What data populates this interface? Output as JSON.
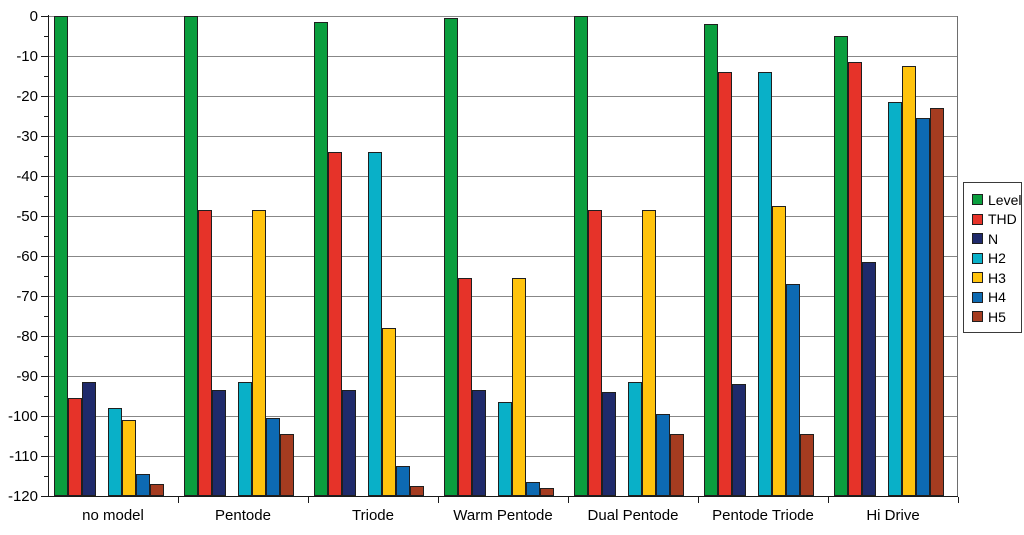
{
  "chart_data": {
    "type": "bar",
    "title": "",
    "xlabel": "",
    "ylabel": "",
    "categories": [
      "no model",
      "Pentode",
      "Triode",
      "Warm Pentode",
      "Dual Pentode",
      "Pentode Triode",
      "Hi Drive"
    ],
    "series": [
      {
        "name": "Level",
        "color": "#0a9e3e",
        "values": [
          0,
          0,
          -1.5,
          -0.5,
          0,
          -2,
          -5
        ]
      },
      {
        "name": "THD",
        "color": "#e63329",
        "values": [
          -95.5,
          -48.5,
          -34,
          -65.5,
          -48.5,
          -14,
          -11.5
        ]
      },
      {
        "name": "N",
        "color": "#1f2a6b",
        "values": [
          -91.5,
          -93.5,
          -93.5,
          -93.5,
          -94,
          -92,
          -61.5
        ]
      },
      {
        "name": "H2",
        "color": "#09b0c8",
        "values": [
          -98,
          -91.5,
          -34,
          -96.5,
          -91.5,
          -14,
          -21.5
        ]
      },
      {
        "name": "H3",
        "color": "#ffc30d",
        "values": [
          -101,
          -48.5,
          -78,
          -65.5,
          -48.5,
          -47.5,
          -12.5
        ]
      },
      {
        "name": "H4",
        "color": "#0d6ab2",
        "values": [
          -114.5,
          -100.5,
          -112.5,
          -116.5,
          -99.5,
          -67,
          -25.5
        ]
      },
      {
        "name": "H5",
        "color": "#a53c20",
        "values": [
          -117,
          -104.5,
          -117.5,
          -118,
          -104.5,
          -104.5,
          -23
        ]
      }
    ],
    "ylim": [
      -120,
      0
    ],
    "y_major_step": 10,
    "y_minor_step": 5,
    "y_tick_labels": [
      "0",
      "-10",
      "-20",
      "-30",
      "-40",
      "-50",
      "-60",
      "-70",
      "-80",
      "-90",
      "-100",
      "-110",
      "-120"
    ],
    "grid": "horizontal-major",
    "legend_position": "right",
    "legend_entries": [
      "Level",
      "THD",
      "N",
      "H2",
      "H3",
      "H4",
      "H5"
    ],
    "series_gap_after": "N"
  }
}
